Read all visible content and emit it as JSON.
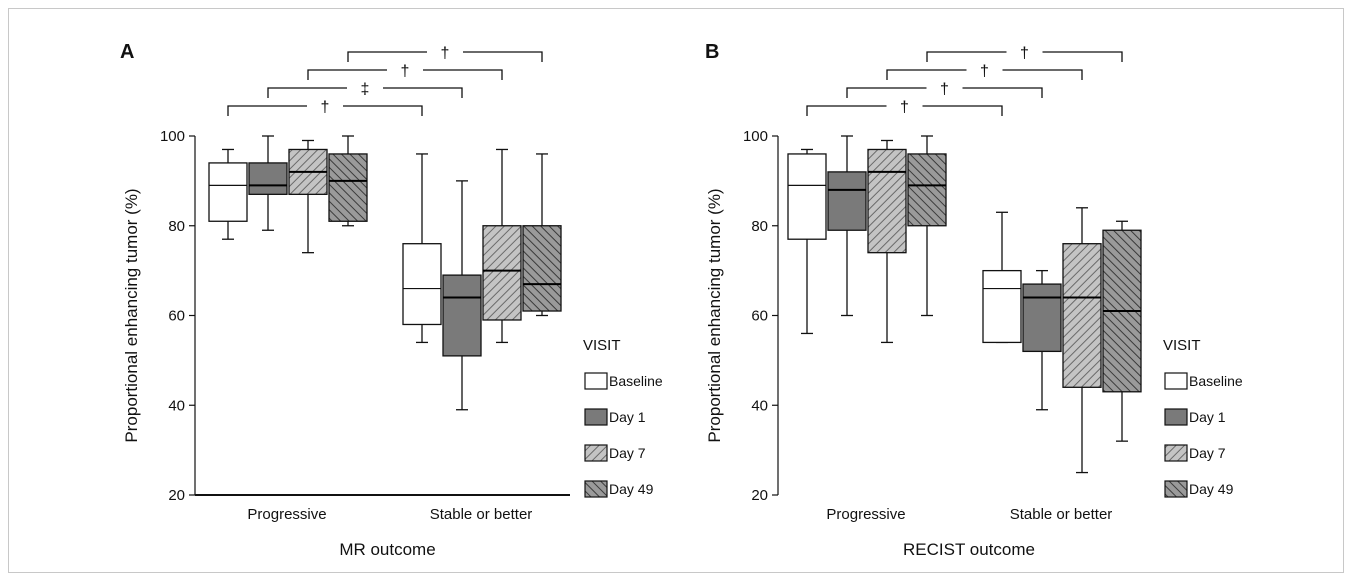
{
  "legend_title": "VISIT",
  "series": [
    {
      "name": "Baseline",
      "fill": "#ffffff",
      "pattern": "none"
    },
    {
      "name": "Day 1",
      "fill": "#7a7a7a",
      "pattern": "none"
    },
    {
      "name": "Day 7",
      "fill": "#bdbdbd",
      "pattern": "hatch-light"
    },
    {
      "name": "Day 49",
      "fill": "#8a8a8a",
      "pattern": "hatch-dark"
    }
  ],
  "chart_data": [
    {
      "panel": "A",
      "type": "boxplot",
      "xlabel": "MR outcome",
      "ylabel": "Proportional enhancing tumor (%)",
      "ylim": [
        20,
        100
      ],
      "yticks": [
        20,
        40,
        60,
        80,
        100
      ],
      "categories": [
        "Progressive",
        "Stable or better"
      ],
      "series": [
        {
          "name": "Baseline",
          "boxes": [
            {
              "min": 77,
              "q1": 81,
              "median": 89,
              "q3": 94,
              "max": 97
            },
            {
              "min": 54,
              "q1": 58,
              "median": 66,
              "q3": 76,
              "max": 96
            }
          ]
        },
        {
          "name": "Day 1",
          "boxes": [
            {
              "min": 79,
              "q1": 87,
              "median": 89,
              "q3": 94,
              "max": 100
            },
            {
              "min": 39,
              "q1": 51,
              "median": 64,
              "q3": 69,
              "max": 90
            }
          ]
        },
        {
          "name": "Day 7",
          "boxes": [
            {
              "min": 74,
              "q1": 87,
              "median": 92,
              "q3": 97,
              "max": 99
            },
            {
              "min": 54,
              "q1": 59,
              "median": 70,
              "q3": 80,
              "max": 97
            }
          ]
        },
        {
          "name": "Day 49",
          "boxes": [
            {
              "min": 80,
              "q1": 81,
              "median": 90,
              "q3": 96,
              "max": 100
            },
            {
              "min": 60,
              "q1": 61,
              "median": 67,
              "q3": 80,
              "max": 96
            }
          ]
        }
      ],
      "significance": [
        {
          "series": "Baseline",
          "mark": "†"
        },
        {
          "series": "Day 1",
          "mark": "‡"
        },
        {
          "series": "Day 7",
          "mark": "†"
        },
        {
          "series": "Day 49",
          "mark": "†"
        }
      ]
    },
    {
      "panel": "B",
      "type": "boxplot",
      "xlabel": "RECIST outcome",
      "ylabel": "Proportional enhancing tumor (%)",
      "ylim": [
        20,
        100
      ],
      "yticks": [
        20,
        40,
        60,
        80,
        100
      ],
      "categories": [
        "Progressive",
        "Stable or better"
      ],
      "series": [
        {
          "name": "Baseline",
          "boxes": [
            {
              "min": 56,
              "q1": 77,
              "median": 89,
              "q3": 96,
              "max": 97
            },
            {
              "min": 54,
              "q1": 54,
              "median": 66,
              "q3": 70,
              "max": 83
            }
          ]
        },
        {
          "name": "Day 1",
          "boxes": [
            {
              "min": 60,
              "q1": 79,
              "median": 88,
              "q3": 92,
              "max": 100
            },
            {
              "min": 39,
              "q1": 52,
              "median": 64,
              "q3": 67,
              "max": 70
            }
          ]
        },
        {
          "name": "Day 7",
          "boxes": [
            {
              "min": 54,
              "q1": 74,
              "median": 92,
              "q3": 97,
              "max": 99
            },
            {
              "min": 25,
              "q1": 44,
              "median": 64,
              "q3": 76,
              "max": 84
            }
          ]
        },
        {
          "name": "Day 49",
          "boxes": [
            {
              "min": 60,
              "q1": 80,
              "median": 89,
              "q3": 96,
              "max": 100
            },
            {
              "min": 32,
              "q1": 43,
              "median": 61,
              "q3": 79,
              "max": 81
            }
          ]
        }
      ],
      "significance": [
        {
          "series": "Baseline",
          "mark": "†"
        },
        {
          "series": "Day 1",
          "mark": "†"
        },
        {
          "series": "Day 7",
          "mark": "†"
        },
        {
          "series": "Day 49",
          "mark": "†"
        }
      ]
    }
  ]
}
